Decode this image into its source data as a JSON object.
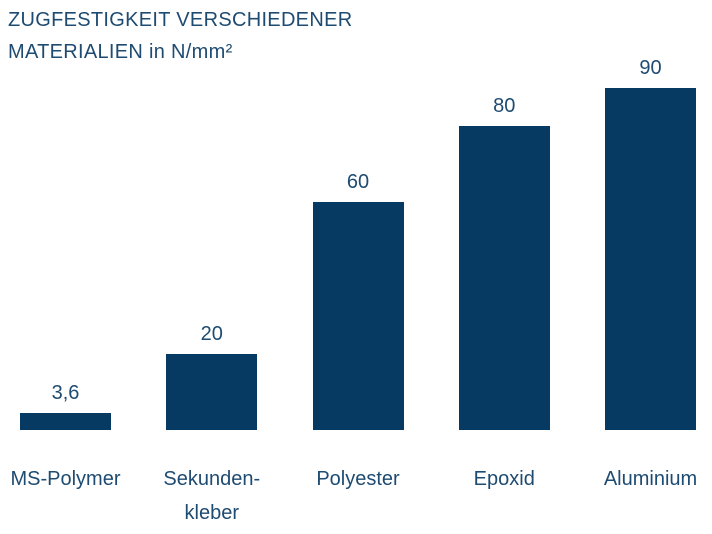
{
  "chart_data": {
    "type": "bar",
    "title": "ZUGFESTIGKEIT VERSCHIEDENER MATERIALIEN in N/mm²",
    "title_line1": "ZUGFESTIGKEIT VERSCHIEDENER",
    "title_line2": "MATERIALIEN in N/mm²",
    "categories": [
      "MS-Polymer",
      "Sekunden-\nkleber",
      "Polyester",
      "Epoxid",
      "Aluminium"
    ],
    "values": [
      3.6,
      20,
      60,
      80,
      90
    ],
    "value_labels": [
      "3,6",
      "20",
      "60",
      "80",
      "90"
    ],
    "xlabel": "",
    "ylabel": "N/mm²",
    "ylim": [
      0,
      100
    ],
    "axes_visible": false,
    "grid": false,
    "legend": false,
    "value_label_position": "above-bars",
    "colors": {
      "bar": "#073a63",
      "text": "#1e4b71",
      "background": "#ffffff"
    }
  }
}
